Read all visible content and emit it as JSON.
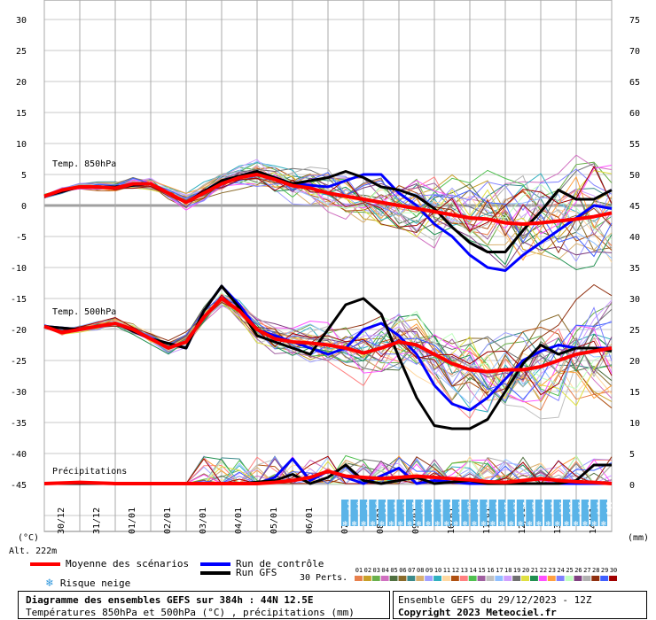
{
  "chart_data": {
    "type": "line",
    "title": "Diagramme des ensembles GEFS sur 384h : 44N 12.5E",
    "subtitle": "Températures 850hPa et 500hPa (°C) , précipitations (mm)",
    "left_axis": {
      "unit": "(°C)",
      "ylim": [
        -50,
        30
      ],
      "ticks": [
        30,
        25,
        20,
        15,
        10,
        5,
        0,
        -5,
        -10,
        -15,
        -20,
        -25,
        -30,
        -35,
        -40,
        -45
      ]
    },
    "right_axis": {
      "unit": "(mm)",
      "ylim": [
        -5,
        75
      ],
      "ticks": [
        75,
        70,
        65,
        60,
        55,
        50,
        45,
        40,
        35,
        30,
        25,
        20,
        15,
        10,
        5,
        0
      ]
    },
    "x_categories": [
      "30/12",
      "31/12",
      "01/01",
      "02/01",
      "03/01",
      "04/01",
      "05/01",
      "06/01",
      "07/01",
      "08/01",
      "09/01",
      "10/01",
      "11/01",
      "12/01",
      "13/01",
      "14/01"
    ],
    "x_hours": [
      0,
      384
    ],
    "grid": true,
    "labels": {
      "t850": "Temp. 850hPa",
      "t500": "Temp. 500hPa",
      "precip": "Précipitations",
      "alt": "Alt. 222m"
    },
    "series": [
      {
        "name": "Moyenne des scénarios",
        "color": "#ff0000",
        "t850": [
          [
            0,
            1.5
          ],
          [
            12,
            2.5
          ],
          [
            24,
            3.0
          ],
          [
            36,
            3.0
          ],
          [
            48,
            2.8
          ],
          [
            60,
            3.5
          ],
          [
            72,
            3.5
          ],
          [
            84,
            2.0
          ],
          [
            96,
            0.5
          ],
          [
            108,
            2.0
          ],
          [
            120,
            3.5
          ],
          [
            132,
            4.5
          ],
          [
            144,
            5.0
          ],
          [
            156,
            4.2
          ],
          [
            168,
            3.2
          ],
          [
            180,
            2.8
          ],
          [
            192,
            2.0
          ],
          [
            204,
            1.5
          ],
          [
            216,
            1.0
          ],
          [
            228,
            0.5
          ],
          [
            240,
            0.0
          ],
          [
            252,
            -0.5
          ],
          [
            264,
            -1.0
          ],
          [
            276,
            -1.5
          ],
          [
            288,
            -2.0
          ],
          [
            300,
            -2.2
          ],
          [
            312,
            -2.8
          ],
          [
            324,
            -3.0
          ],
          [
            336,
            -2.8
          ],
          [
            348,
            -2.5
          ],
          [
            360,
            -2.2
          ],
          [
            372,
            -1.8
          ],
          [
            384,
            -1.2
          ]
        ],
        "t500": [
          [
            0,
            -19.5
          ],
          [
            12,
            -20.5
          ],
          [
            24,
            -20.0
          ],
          [
            36,
            -19.5
          ],
          [
            48,
            -19.0
          ],
          [
            60,
            -20.0
          ],
          [
            72,
            -21.5
          ],
          [
            84,
            -23.0
          ],
          [
            96,
            -22.0
          ],
          [
            108,
            -18.0
          ],
          [
            120,
            -15.0
          ],
          [
            132,
            -17.0
          ],
          [
            144,
            -20.0
          ],
          [
            156,
            -21.5
          ],
          [
            168,
            -22.0
          ],
          [
            180,
            -22.2
          ],
          [
            192,
            -22.5
          ],
          [
            204,
            -23.0
          ],
          [
            216,
            -23.8
          ],
          [
            228,
            -23.0
          ],
          [
            240,
            -22.0
          ],
          [
            252,
            -22.5
          ],
          [
            264,
            -24.0
          ],
          [
            276,
            -25.5
          ],
          [
            288,
            -26.5
          ],
          [
            300,
            -26.8
          ],
          [
            312,
            -26.5
          ],
          [
            324,
            -26.5
          ],
          [
            336,
            -26.0
          ],
          [
            348,
            -25.0
          ],
          [
            360,
            -24.0
          ],
          [
            372,
            -23.5
          ],
          [
            384,
            -23.0
          ]
        ],
        "precip": [
          [
            0,
            0
          ],
          [
            24,
            0.2
          ],
          [
            48,
            0
          ],
          [
            96,
            0
          ],
          [
            144,
            0
          ],
          [
            156,
            0.2
          ],
          [
            168,
            0.5
          ],
          [
            180,
            1.0
          ],
          [
            192,
            2.0
          ],
          [
            204,
            1.2
          ],
          [
            216,
            1.0
          ],
          [
            228,
            0.8
          ],
          [
            240,
            1.0
          ],
          [
            252,
            1.2
          ],
          [
            264,
            1.0
          ],
          [
            276,
            0.8
          ],
          [
            288,
            0.6
          ],
          [
            300,
            0.3
          ],
          [
            312,
            0.2
          ],
          [
            324,
            0.5
          ],
          [
            336,
            0.8
          ],
          [
            348,
            0.5
          ],
          [
            360,
            0.3
          ],
          [
            372,
            0.2
          ],
          [
            384,
            0
          ]
        ]
      },
      {
        "name": "Run de contrôle",
        "color": "#0000ff",
        "t850": [
          [
            0,
            1.5
          ],
          [
            24,
            3.0
          ],
          [
            48,
            3.0
          ],
          [
            72,
            3.5
          ],
          [
            96,
            0.5
          ],
          [
            120,
            4.0
          ],
          [
            144,
            5.5
          ],
          [
            168,
            3.5
          ],
          [
            192,
            3.0
          ],
          [
            204,
            4.0
          ],
          [
            216,
            5.0
          ],
          [
            228,
            5.0
          ],
          [
            240,
            2.0
          ],
          [
            252,
            0.0
          ],
          [
            264,
            -3.0
          ],
          [
            276,
            -5.0
          ],
          [
            288,
            -8.0
          ],
          [
            300,
            -10.0
          ],
          [
            312,
            -10.5
          ],
          [
            324,
            -8.0
          ],
          [
            336,
            -6.0
          ],
          [
            348,
            -4.0
          ],
          [
            360,
            -2.0
          ],
          [
            372,
            0.0
          ],
          [
            384,
            -0.5
          ]
        ],
        "t500": [
          [
            0,
            -19.5
          ],
          [
            24,
            -20.0
          ],
          [
            48,
            -19.0
          ],
          [
            72,
            -21.5
          ],
          [
            96,
            -23.0
          ],
          [
            108,
            -17.0
          ],
          [
            120,
            -13.0
          ],
          [
            132,
            -16.0
          ],
          [
            144,
            -20.0
          ],
          [
            168,
            -22.0
          ],
          [
            192,
            -24.0
          ],
          [
            204,
            -23.0
          ],
          [
            216,
            -20.0
          ],
          [
            228,
            -19.0
          ],
          [
            240,
            -21.0
          ],
          [
            252,
            -24.0
          ],
          [
            264,
            -29.0
          ],
          [
            276,
            -32.0
          ],
          [
            288,
            -33.0
          ],
          [
            300,
            -31.0
          ],
          [
            312,
            -28.0
          ],
          [
            324,
            -25.0
          ],
          [
            336,
            -23.5
          ],
          [
            348,
            -22.5
          ],
          [
            360,
            -23.0
          ],
          [
            372,
            -23.0
          ],
          [
            384,
            -23.0
          ]
        ],
        "precip": [
          [
            0,
            0
          ],
          [
            120,
            0
          ],
          [
            144,
            0
          ],
          [
            156,
            1.0
          ],
          [
            168,
            4.0
          ],
          [
            180,
            0.5
          ],
          [
            192,
            2.0
          ],
          [
            204,
            1.0
          ],
          [
            216,
            0
          ],
          [
            240,
            2.5
          ],
          [
            252,
            0
          ],
          [
            264,
            0.5
          ],
          [
            288,
            0
          ],
          [
            384,
            0
          ]
        ]
      },
      {
        "name": "Run GFS",
        "color": "#000000",
        "t850": [
          [
            0,
            1.5
          ],
          [
            24,
            3.0
          ],
          [
            48,
            3.0
          ],
          [
            72,
            3.5
          ],
          [
            96,
            0.5
          ],
          [
            120,
            4.0
          ],
          [
            144,
            5.5
          ],
          [
            168,
            3.5
          ],
          [
            192,
            4.5
          ],
          [
            204,
            5.5
          ],
          [
            216,
            4.5
          ],
          [
            228,
            3.0
          ],
          [
            240,
            2.5
          ],
          [
            252,
            1.5
          ],
          [
            264,
            -0.5
          ],
          [
            276,
            -3.5
          ],
          [
            288,
            -6.0
          ],
          [
            300,
            -7.5
          ],
          [
            312,
            -7.5
          ],
          [
            324,
            -4.0
          ],
          [
            336,
            -1.0
          ],
          [
            348,
            2.5
          ],
          [
            360,
            1.0
          ],
          [
            372,
            1.0
          ],
          [
            384,
            2.5
          ]
        ],
        "t500": [
          [
            0,
            -19.5
          ],
          [
            24,
            -20.0
          ],
          [
            48,
            -19.0
          ],
          [
            72,
            -21.5
          ],
          [
            96,
            -23.0
          ],
          [
            108,
            -17.0
          ],
          [
            120,
            -13.0
          ],
          [
            132,
            -16.5
          ],
          [
            144,
            -21.0
          ],
          [
            168,
            -23.0
          ],
          [
            180,
            -24.0
          ],
          [
            192,
            -20.0
          ],
          [
            204,
            -16.0
          ],
          [
            216,
            -15.0
          ],
          [
            228,
            -17.5
          ],
          [
            240,
            -24.5
          ],
          [
            252,
            -31.0
          ],
          [
            264,
            -35.5
          ],
          [
            276,
            -36.0
          ],
          [
            288,
            -36.0
          ],
          [
            300,
            -34.5
          ],
          [
            312,
            -30.0
          ],
          [
            324,
            -25.5
          ],
          [
            336,
            -22.5
          ],
          [
            348,
            -24.0
          ],
          [
            360,
            -23.0
          ],
          [
            372,
            -23.0
          ],
          [
            384,
            -23.5
          ]
        ],
        "precip": [
          [
            0,
            0
          ],
          [
            132,
            0
          ],
          [
            156,
            0.5
          ],
          [
            168,
            1.5
          ],
          [
            180,
            0
          ],
          [
            192,
            1.0
          ],
          [
            204,
            3.0
          ],
          [
            216,
            0.5
          ],
          [
            228,
            0
          ],
          [
            252,
            1.0
          ],
          [
            264,
            0
          ],
          [
            288,
            0.5
          ],
          [
            300,
            0
          ],
          [
            348,
            0
          ],
          [
            360,
            0.5
          ],
          [
            372,
            3.0
          ],
          [
            384,
            3.0
          ]
        ]
      }
    ],
    "snow_risk": {
      "label": "Risque neige",
      "values": [
        "3%",
        "6%",
        "6%",
        "3%",
        "10%",
        "10%",
        "10%",
        "13%",
        "13%",
        "10%",
        "13%",
        "16%",
        "20%",
        "20%",
        "16%",
        "16%",
        "13%",
        "16%",
        "10%",
        "10%",
        "13%",
        "10%",
        "10%",
        "16%",
        "10%",
        "13%",
        "6%",
        "10%",
        "10%"
      ]
    },
    "perts": {
      "label": "30 Perts.",
      "numbers": [
        "01",
        "02",
        "03",
        "04",
        "05",
        "06",
        "07",
        "08",
        "09",
        "10",
        "11",
        "12",
        "13",
        "14",
        "15",
        "16",
        "17",
        "18",
        "19",
        "20",
        "21",
        "22",
        "23",
        "24",
        "25",
        "26",
        "27",
        "28",
        "29",
        "30"
      ],
      "colors": [
        "#e8804c",
        "#c8a028",
        "#6ab04c",
        "#d070c0",
        "#507040",
        "#8a6a2a",
        "#3a8a8a",
        "#d8b070",
        "#a0a0ff",
        "#30b0c0",
        "#ffd8a0",
        "#b05010",
        "#ff8080",
        "#50c050",
        "#a060a0",
        "#c0c0c0",
        "#90c0ff",
        "#d0a0ff",
        "#707070",
        "#e0e040",
        "#209050",
        "#ff50ff",
        "#ffa040",
        "#8080ff",
        "#c0ffc0",
        "#804080",
        "#b0b0b0",
        "#903010",
        "#4060ff",
        "#a00000"
      ]
    }
  },
  "legend": {
    "mean_label": "Moyenne des scénarios",
    "control_label": "Run de contrôle",
    "gfs_label": "Run GFS",
    "snow_label": "Risque neige"
  },
  "footer": {
    "title": "Diagramme des ensembles GEFS sur 384h : 44N 12.5E",
    "subtitle": "Températures 850hPa et 500hPa (°C) , précipitations (mm)",
    "run": "Ensemble GEFS du 29/12/2023 - 12Z",
    "copyright": "Copyright 2023 Meteociel.fr"
  },
  "colors": {
    "mean": "#ff0000",
    "control": "#0000ff",
    "gfs": "#000000",
    "zero_line": "#a0a0a0",
    "snow_bar": "#5ab4e8"
  }
}
